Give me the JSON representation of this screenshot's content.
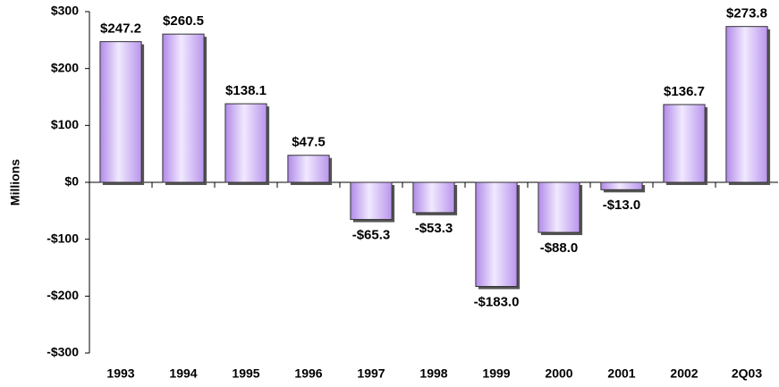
{
  "chart_data": {
    "type": "bar",
    "y_axis_label": "Millions",
    "categories": [
      "1993",
      "1994",
      "1995",
      "1996",
      "1997",
      "1998",
      "1999",
      "2000",
      "2001",
      "2002",
      "2Q03"
    ],
    "values": [
      247.2,
      260.5,
      138.1,
      47.5,
      -65.3,
      -53.3,
      -183.0,
      -88.0,
      -13.0,
      136.7,
      273.8
    ],
    "value_labels": [
      "$247.2",
      "$260.5",
      "$138.1",
      "$47.5",
      "-$65.3",
      "-$53.3",
      "-$183.0",
      "-$88.0",
      "-$13.0",
      "$136.7",
      "$273.8"
    ],
    "color": "#c4a4f2",
    "ylim": [
      -300,
      300
    ],
    "yticks": [
      {
        "value": -300,
        "label": "-$300"
      },
      {
        "value": -200,
        "label": "-$200"
      },
      {
        "value": -100,
        "label": "-$100"
      },
      {
        "value": 0,
        "label": "$0"
      },
      {
        "value": 100,
        "label": "$100"
      },
      {
        "value": 200,
        "label": "$200"
      },
      {
        "value": 300,
        "label": "$300"
      }
    ],
    "grid": false
  }
}
